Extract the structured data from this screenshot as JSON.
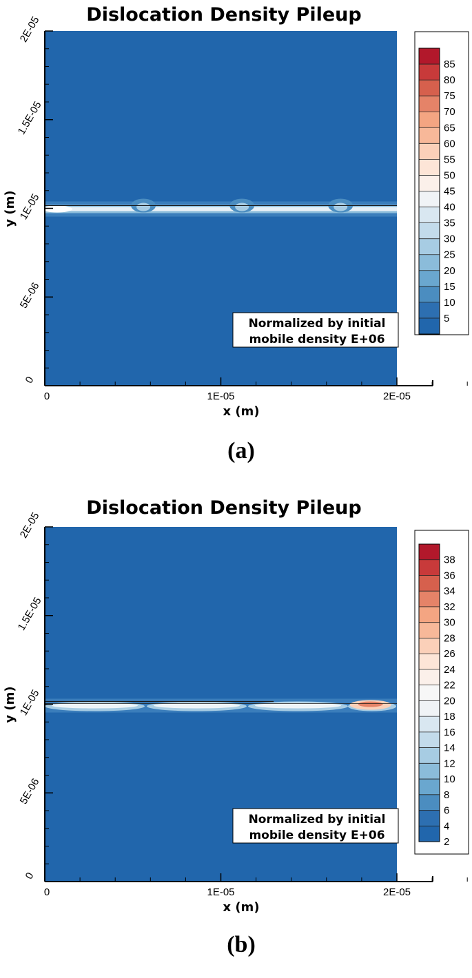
{
  "chart_data": [
    {
      "type": "heatmap",
      "title": "Dislocation Density Pileup",
      "xlabel": "x (m)",
      "ylabel": "y (m)",
      "xlim": [
        0,
        2e-05
      ],
      "ylim": [
        0,
        2e-05
      ],
      "x_ticks": [
        "0",
        "1E-05",
        "2E-05"
      ],
      "y_ticks": [
        "0",
        "5E-06",
        "1E-05",
        "1.5E-05",
        "2E-05"
      ],
      "colorbar": {
        "levels": [
          5,
          10,
          15,
          20,
          25,
          30,
          35,
          40,
          45,
          50,
          55,
          60,
          65,
          70,
          75,
          80,
          85
        ],
        "labels": [
          "85",
          "80",
          "75",
          "70",
          "65",
          "60",
          "55",
          "50",
          "45",
          "40",
          "35",
          "30",
          "25",
          "20",
          "15",
          "10",
          "5"
        ],
        "colors": [
          "#b2182b",
          "#c83a3a",
          "#d6604d",
          "#e58368",
          "#f4a582",
          "#f7b899",
          "#fbd0b9",
          "#fde5d7",
          "#fbf0ea",
          "#f0f3f6",
          "#d9e7f1",
          "#c3dbeb",
          "#a7cce3",
          "#8bbcda",
          "#6aa7cf",
          "#4b8dc0",
          "#2d6fb1",
          "#2166ac"
        ]
      },
      "annotation": [
        "Normalized by initial",
        "mobile density E+06"
      ],
      "band_y": 1e-05,
      "background_color": "#2166ac",
      "panel_label": "(a)"
    },
    {
      "type": "heatmap",
      "title": "Dislocation Density Pileup",
      "xlabel": "x (m)",
      "ylabel": "y (m)",
      "xlim": [
        0,
        2e-05
      ],
      "ylim": [
        0,
        2e-05
      ],
      "x_ticks": [
        "0",
        "1E-05",
        "2E-05"
      ],
      "y_ticks": [
        "0",
        "5E-06",
        "1E-05",
        "1.5E-05",
        "2E-05"
      ],
      "colorbar": {
        "levels": [
          2,
          4,
          6,
          8,
          10,
          12,
          14,
          16,
          18,
          20,
          22,
          24,
          26,
          28,
          30,
          32,
          34,
          36,
          38
        ],
        "labels": [
          "38",
          "36",
          "34",
          "32",
          "30",
          "28",
          "26",
          "24",
          "22",
          "20",
          "18",
          "16",
          "14",
          "12",
          "10",
          "8",
          "6",
          "4",
          "2"
        ],
        "colors": [
          "#b2182b",
          "#c83a3a",
          "#d6604d",
          "#e58368",
          "#f4a582",
          "#f7b899",
          "#fbd0b9",
          "#fde5d7",
          "#fbf0ea",
          "#f7f7f7",
          "#f0f3f6",
          "#d9e7f1",
          "#c3dbeb",
          "#a7cce3",
          "#8bbcda",
          "#6aa7cf",
          "#4b8dc0",
          "#2d6fb1",
          "#2166ac"
        ]
      },
      "annotation": [
        "Normalized by initial",
        "mobile density E+06"
      ],
      "band_y": 1e-05,
      "background_color": "#2166ac",
      "panel_label": "(b)"
    }
  ]
}
